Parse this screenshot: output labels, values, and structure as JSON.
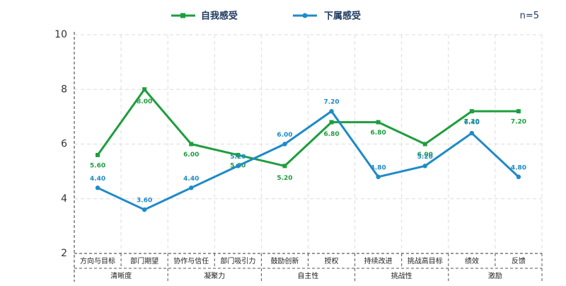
{
  "legend": {
    "self": {
      "label": "自我感受",
      "color": "#1e9e3e"
    },
    "sub": {
      "label": "下属感受",
      "color": "#1f8ac7"
    }
  },
  "n_label": "n=5",
  "chart_data": {
    "type": "line",
    "title": "",
    "xlabel": "",
    "ylabel": "",
    "ylim": [
      2,
      10
    ],
    "yticks": [
      "2",
      "4",
      "6",
      "8",
      "10"
    ],
    "grid": true,
    "legend_position": "top",
    "categories": [
      "方向与目标",
      "部门期望",
      "协作与信任",
      "部门吸引力",
      "鼓励创新",
      "授权",
      "持续改进",
      "挑战高目标",
      "绩效",
      "反馈"
    ],
    "groups": [
      {
        "label": "清晰度",
        "span": 2
      },
      {
        "label": "凝聚力",
        "span": 2
      },
      {
        "label": "自主性",
        "span": 2
      },
      {
        "label": "挑战性",
        "span": 2
      },
      {
        "label": "激励",
        "span": 2
      }
    ],
    "series": [
      {
        "name": "自我感受",
        "color": "#1e9e3e",
        "values": [
          5.6,
          8.0,
          6.0,
          5.6,
          5.2,
          6.8,
          6.8,
          6.0,
          7.2,
          7.2
        ],
        "labels": [
          "5.60",
          "8.00",
          "6.00",
          "5.60",
          "5.20",
          "6.80",
          "6.80",
          "6.00",
          "7.20",
          "7.20"
        ]
      },
      {
        "name": "下属感受",
        "color": "#1f8ac7",
        "values": [
          4.4,
          3.6,
          4.4,
          5.2,
          6.0,
          7.2,
          4.8,
          5.2,
          6.4,
          4.8
        ],
        "labels": [
          "4.40",
          "3.60",
          "4.40",
          "5.20",
          "6.00",
          "7.20",
          "4.80",
          "5.20",
          "6.40",
          "4.80"
        ]
      }
    ]
  }
}
